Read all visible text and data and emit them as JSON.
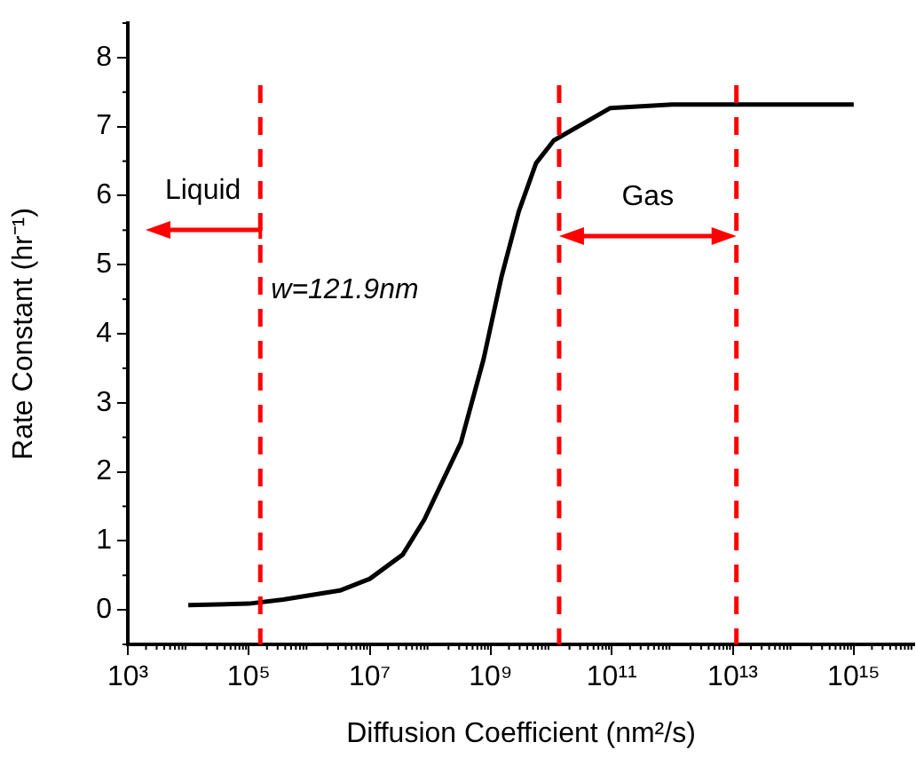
{
  "chart_data": {
    "type": "line",
    "xlabel": "Diffusion Coefficient (nm²/s)",
    "ylabel": "Rate Constant (hr⁻¹)",
    "log": "x",
    "x": [
      10000,
      100000,
      370000,
      3200000,
      10000000,
      35000000,
      80000000,
      130000000,
      320000000,
      760000000,
      1500000000,
      2900000000,
      5600000000,
      11000000000,
      95000000000,
      1000000000000,
      1000000000000000
    ],
    "values": [
      0.07,
      0.09,
      0.15,
      0.28,
      0.45,
      0.8,
      1.31,
      1.7,
      2.42,
      3.63,
      4.82,
      5.77,
      6.47,
      6.8,
      7.27,
      7.32,
      7.32
    ],
    "color": "#000000",
    "xlim": [
      1000,
      10000000000000000
    ],
    "xticks": [
      {
        "value": 1000,
        "label": "10³"
      },
      {
        "value": 100000,
        "label": "10⁵"
      },
      {
        "value": 10000000,
        "label": "10⁷"
      },
      {
        "value": 1000000000,
        "label": "10⁹"
      },
      {
        "value": 100000000000,
        "label": "10¹¹"
      },
      {
        "value": 10000000000000,
        "label": "10¹³"
      },
      {
        "value": 1000000000000000,
        "label": "10¹⁵"
      }
    ],
    "ylim": [
      -0.5,
      8.5
    ],
    "yticks": [
      0,
      1,
      2,
      3,
      4,
      5,
      6,
      7,
      8
    ],
    "ref_lines": [
      {
        "axis": "x",
        "value": 155000,
        "color": "#ff0000",
        "line_style": "dashed"
      },
      {
        "axis": "x",
        "value": 13500000000,
        "color": "#ff0000",
        "line_style": "dashed"
      },
      {
        "axis": "x",
        "value": 11500000000000,
        "color": "#ff0000",
        "line_style": "dashed"
      }
    ],
    "annotations": [
      "Liquid",
      "Gas",
      "w=121.9nm"
    ]
  }
}
